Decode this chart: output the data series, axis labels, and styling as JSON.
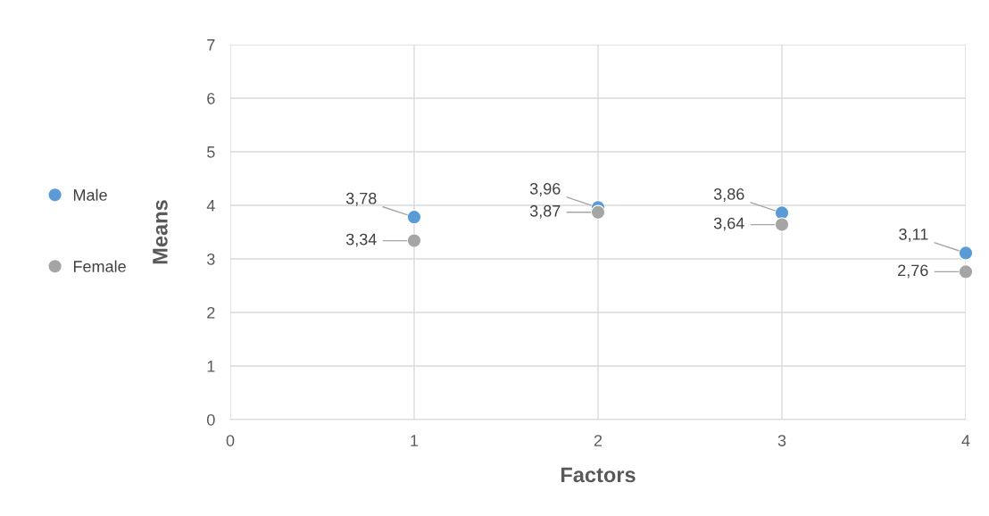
{
  "chart_data": {
    "type": "scatter",
    "xlabel": "Factors",
    "ylabel": "Means",
    "x": [
      1,
      2,
      3,
      4
    ],
    "series": [
      {
        "name": "Male",
        "color": "#5b9bd5",
        "values": [
          3.78,
          3.96,
          3.86,
          3.11
        ],
        "value_labels": [
          "3,78",
          "3,96",
          "3,86",
          "3,11"
        ]
      },
      {
        "name": "Female",
        "color": "#a5a5a5",
        "values": [
          3.34,
          3.87,
          3.64,
          2.76
        ],
        "value_labels": [
          "3,34",
          "3,87",
          "3,64",
          "2,76"
        ]
      }
    ],
    "xlim": [
      0,
      4
    ],
    "xticks": [
      0,
      1,
      2,
      3,
      4
    ],
    "ylim": [
      0,
      7
    ],
    "yticks": [
      0,
      1,
      2,
      3,
      4,
      5,
      6,
      7
    ],
    "grid": true,
    "legend": "left",
    "marker": "circle"
  }
}
